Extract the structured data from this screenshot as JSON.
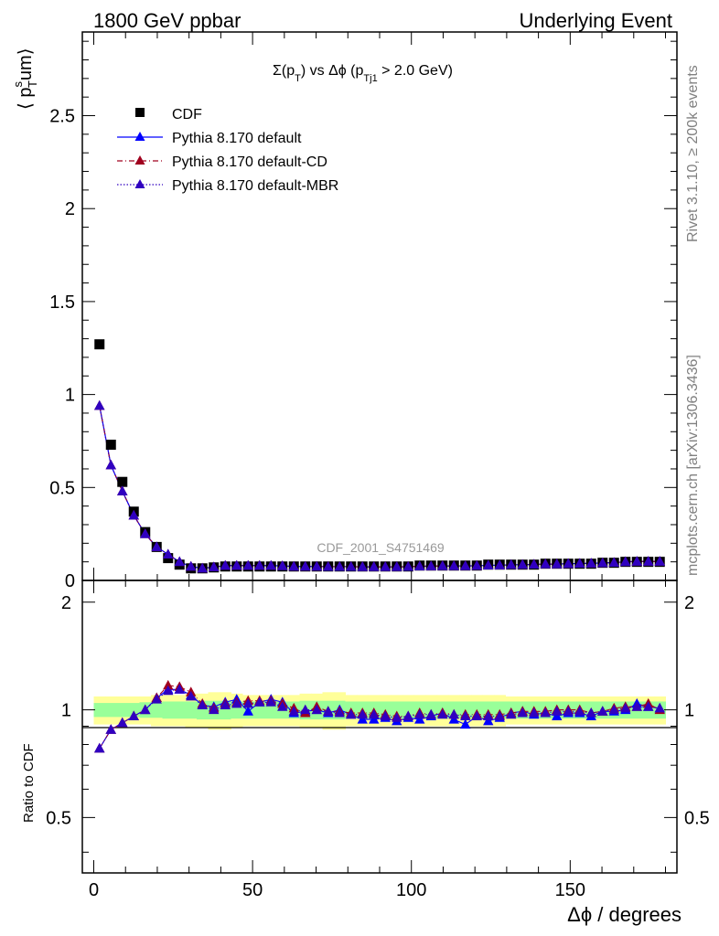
{
  "header": {
    "left": "1800 GeV ppbar",
    "right": "Underlying Event"
  },
  "side": {
    "rivet": "Rivet 3.1.10, ≥ 200k events",
    "mcplots": "mcplots.cern.ch [arXiv:1306.3436]"
  },
  "plot": {
    "title_sigma": "Σ(p",
    "title_sub_t": "T",
    "title_mid": ") vs Δϕ (p",
    "title_sub_tj1": "Tj1",
    "title_end": " > 2.0 GeV)",
    "ylabel_main_a": "⟨ p",
    "ylabel_main_sup": "s",
    "ylabel_main_sub": "T",
    "ylabel_main_b": "um⟩",
    "watermark": "CDF_2001_S4751469",
    "ratio_ylabel": "Ratio to CDF",
    "xlabel": "Δϕ / degrees"
  },
  "chart_data": [
    {
      "type": "scatter",
      "panel": "main",
      "xlim": [
        -3.6,
        183.6
      ],
      "ylim": [
        0,
        2.95
      ],
      "xticks": [
        "0",
        "50",
        "100",
        "150"
      ],
      "yticks": [
        "0",
        "0.5",
        "1",
        "1.5",
        "2",
        "2.5"
      ],
      "legend_position": "top-left",
      "legend": [
        "CDF",
        "Pythia 8.170 default",
        "Pythia 8.170 default-CD",
        "Pythia 8.170 default-MBR"
      ],
      "x": [
        1.8,
        5.4,
        9,
        12.6,
        16.2,
        19.8,
        23.4,
        27,
        30.6,
        34.2,
        37.8,
        41.4,
        45,
        48.6,
        52.2,
        55.8,
        59.4,
        63,
        66.6,
        70.2,
        73.8,
        77.4,
        81,
        84.6,
        88.2,
        91.8,
        95.4,
        99,
        102.6,
        106.2,
        109.8,
        113.4,
        117,
        120.6,
        124.2,
        127.8,
        131.4,
        135,
        138.6,
        142.2,
        145.8,
        149.4,
        153,
        156.6,
        160.2,
        163.8,
        167.4,
        171,
        174.6,
        178.2
      ],
      "series": [
        {
          "name": "CDF",
          "color": "#000000",
          "marker": "square",
          "values": [
            1.27,
            0.73,
            0.53,
            0.37,
            0.26,
            0.18,
            0.12,
            0.085,
            0.065,
            0.065,
            0.07,
            0.075,
            0.075,
            0.075,
            0.075,
            0.075,
            0.075,
            0.075,
            0.075,
            0.075,
            0.075,
            0.075,
            0.075,
            0.075,
            0.075,
            0.075,
            0.075,
            0.075,
            0.08,
            0.08,
            0.08,
            0.08,
            0.08,
            0.08,
            0.085,
            0.085,
            0.085,
            0.085,
            0.085,
            0.09,
            0.09,
            0.09,
            0.09,
            0.09,
            0.095,
            0.095,
            0.1,
            0.1,
            0.1,
            0.1
          ]
        },
        {
          "name": "Pythia 8.170 default",
          "color": "#0000ff",
          "marker": "triangle",
          "line": "solid",
          "values": [
            0.94,
            0.62,
            0.48,
            0.35,
            0.25,
            0.18,
            0.14,
            0.1,
            0.075,
            0.065,
            0.072,
            0.08,
            0.08,
            0.08,
            0.08,
            0.08,
            0.078,
            0.075,
            0.075,
            0.075,
            0.074,
            0.074,
            0.074,
            0.073,
            0.073,
            0.073,
            0.073,
            0.074,
            0.076,
            0.077,
            0.078,
            0.078,
            0.078,
            0.079,
            0.081,
            0.082,
            0.084,
            0.085,
            0.086,
            0.088,
            0.088,
            0.09,
            0.091,
            0.092,
            0.094,
            0.096,
            0.1,
            0.102,
            0.102,
            0.102
          ]
        },
        {
          "name": "Pythia 8.170 default-CD",
          "color": "#a0001e",
          "marker": "triangle",
          "line": "dashdot",
          "values": [
            0.94,
            0.62,
            0.48,
            0.35,
            0.25,
            0.18,
            0.14,
            0.1,
            0.075,
            0.065,
            0.072,
            0.08,
            0.08,
            0.08,
            0.08,
            0.08,
            0.078,
            0.075,
            0.075,
            0.075,
            0.074,
            0.074,
            0.074,
            0.073,
            0.073,
            0.073,
            0.073,
            0.074,
            0.076,
            0.077,
            0.078,
            0.078,
            0.078,
            0.079,
            0.081,
            0.082,
            0.084,
            0.085,
            0.086,
            0.088,
            0.088,
            0.09,
            0.091,
            0.092,
            0.094,
            0.096,
            0.1,
            0.102,
            0.102,
            0.102
          ]
        },
        {
          "name": "Pythia 8.170 default-MBR",
          "color": "#3000c0",
          "marker": "triangle",
          "line": "dotted",
          "values": [
            0.94,
            0.62,
            0.48,
            0.35,
            0.25,
            0.18,
            0.14,
            0.1,
            0.075,
            0.065,
            0.072,
            0.08,
            0.08,
            0.08,
            0.08,
            0.08,
            0.078,
            0.075,
            0.075,
            0.075,
            0.074,
            0.074,
            0.074,
            0.073,
            0.073,
            0.073,
            0.073,
            0.074,
            0.076,
            0.077,
            0.078,
            0.078,
            0.078,
            0.079,
            0.081,
            0.082,
            0.084,
            0.085,
            0.086,
            0.088,
            0.088,
            0.09,
            0.091,
            0.092,
            0.094,
            0.096,
            0.1,
            0.102,
            0.102,
            0.102
          ]
        }
      ]
    },
    {
      "type": "scatter",
      "panel": "ratio",
      "ylabel": "Ratio to CDF",
      "xlim": [
        -3.6,
        183.6
      ],
      "ylim": [
        0.35,
        2.3
      ],
      "yscale": "log",
      "yticks": [
        "0.5",
        "1",
        "2"
      ],
      "xticks": [
        "0",
        "50",
        "100",
        "150"
      ],
      "band_inner_halfwidth": [
        0.045,
        0.045,
        0.045,
        0.045,
        0.05,
        0.05,
        0.055,
        0.055,
        0.055,
        0.06,
        0.06,
        0.06,
        0.055,
        0.055,
        0.055,
        0.055,
        0.055,
        0.055,
        0.06,
        0.06,
        0.06,
        0.06,
        0.055,
        0.055,
        0.055,
        0.055,
        0.055,
        0.055,
        0.055,
        0.055,
        0.055,
        0.055,
        0.055,
        0.055,
        0.055,
        0.055,
        0.055,
        0.055,
        0.055,
        0.055,
        0.055,
        0.055,
        0.055,
        0.055,
        0.055,
        0.055,
        0.055,
        0.055,
        0.055,
        0.055
      ],
      "band_outer_halfwidth": [
        0.09,
        0.09,
        0.09,
        0.09,
        0.09,
        0.1,
        0.1,
        0.1,
        0.11,
        0.11,
        0.12,
        0.12,
        0.11,
        0.1,
        0.1,
        0.1,
        0.1,
        0.1,
        0.11,
        0.11,
        0.12,
        0.12,
        0.1,
        0.1,
        0.1,
        0.1,
        0.1,
        0.1,
        0.1,
        0.1,
        0.1,
        0.1,
        0.1,
        0.1,
        0.1,
        0.1,
        0.09,
        0.09,
        0.09,
        0.09,
        0.09,
        0.09,
        0.09,
        0.09,
        0.09,
        0.09,
        0.09,
        0.09,
        0.09,
        0.09
      ],
      "series": [
        {
          "name": "Pythia 8.170 default",
          "color": "#0000ff",
          "values": [
            0.78,
            0.88,
            0.92,
            0.96,
            1.0,
            1.08,
            1.14,
            1.14,
            1.1,
            1.03,
            1.02,
            1.05,
            1.07,
            0.99,
            1.05,
            1.07,
            1.05,
            0.98,
            0.99,
            1.0,
            0.98,
            1.0,
            0.97,
            0.94,
            0.94,
            0.95,
            0.93,
            0.95,
            0.94,
            0.96,
            0.98,
            0.94,
            0.91,
            0.96,
            0.93,
            0.95,
            0.98,
            0.99,
            0.97,
            0.98,
            0.96,
            0.98,
            0.98,
            0.96,
            0.99,
            0.99,
            1.0,
            1.04,
            1.02,
            1.01
          ]
        },
        {
          "name": "Pythia 8.170 default-CD",
          "color": "#a0001e",
          "values": [
            0.78,
            0.88,
            0.92,
            0.96,
            1.0,
            1.08,
            1.17,
            1.16,
            1.12,
            1.04,
            1.01,
            1.04,
            1.05,
            1.06,
            1.06,
            1.06,
            1.04,
            1.01,
            0.98,
            1.02,
            0.99,
            0.99,
            0.98,
            0.98,
            0.98,
            0.97,
            0.96,
            0.96,
            0.98,
            0.97,
            0.98,
            0.97,
            0.97,
            0.97,
            0.97,
            0.97,
            0.98,
            0.99,
            0.99,
            0.99,
            1.0,
            1.0,
            1.0,
            0.98,
            0.99,
            1.01,
            1.02,
            1.02,
            1.04,
            1.0
          ]
        },
        {
          "name": "Pythia 8.170 default-MBR",
          "color": "#3000c0",
          "values": [
            0.78,
            0.88,
            0.92,
            0.96,
            1.0,
            1.07,
            1.13,
            1.14,
            1.09,
            1.03,
            1.0,
            1.03,
            1.04,
            1.04,
            1.05,
            1.05,
            1.02,
            0.99,
            1.0,
            1.0,
            0.99,
            0.98,
            0.97,
            0.97,
            0.97,
            0.96,
            0.95,
            0.96,
            0.97,
            0.97,
            0.97,
            0.97,
            0.96,
            0.96,
            0.96,
            0.96,
            0.97,
            0.98,
            0.98,
            0.98,
            0.99,
            0.99,
            0.99,
            0.98,
            0.99,
            1.0,
            1.01,
            1.02,
            1.02,
            1.01
          ]
        }
      ]
    }
  ]
}
